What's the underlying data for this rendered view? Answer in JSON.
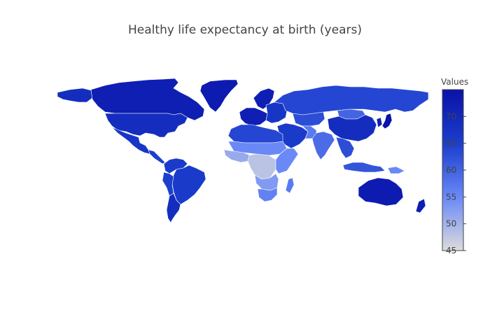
{
  "title": "Healthy life expectancy at birth (years)",
  "colorbar": {
    "title": "Values",
    "min": 45,
    "max": 75,
    "ticks": [
      "70",
      "65",
      "60",
      "55",
      "50",
      "45"
    ],
    "tick_values": [
      70,
      65,
      60,
      55,
      50,
      45
    ],
    "colorscale": [
      "#dcdcdc",
      "#6a89f7",
      "#1c3fce",
      "#0a12a8"
    ]
  },
  "regions": [
    {
      "name": "Canada",
      "value": 72
    },
    {
      "name": "Alaska",
      "value": 69
    },
    {
      "name": "Greenland",
      "value": 73
    },
    {
      "name": "United States",
      "value": 69
    },
    {
      "name": "Mexico",
      "value": 67
    },
    {
      "name": "Central America",
      "value": 65
    },
    {
      "name": "Colombia and Venezuela",
      "value": 66
    },
    {
      "name": "Brazil",
      "value": 66
    },
    {
      "name": "Andean countries",
      "value": 65
    },
    {
      "name": "Southern Cone",
      "value": 69
    },
    {
      "name": "Western Europe",
      "value": 72
    },
    {
      "name": "Scandinavia",
      "value": 72
    },
    {
      "name": "Eastern Europe",
      "value": 67
    },
    {
      "name": "Russia",
      "value": 64
    },
    {
      "name": "Central Asia",
      "value": 63
    },
    {
      "name": "China",
      "value": 69
    },
    {
      "name": "Mongolia",
      "value": 60
    },
    {
      "name": "Japan",
      "value": 75
    },
    {
      "name": "Korea",
      "value": 72
    },
    {
      "name": "Middle East",
      "value": 66
    },
    {
      "name": "North Africa",
      "value": 64
    },
    {
      "name": "Sahel",
      "value": 55
    },
    {
      "name": "West Africa",
      "value": 51
    },
    {
      "name": "Central Africa",
      "value": 48
    },
    {
      "name": "East Africa",
      "value": 55
    },
    {
      "name": "Southern Africa",
      "value": 53
    },
    {
      "name": "South Africa",
      "value": 56
    },
    {
      "name": "Madagascar",
      "value": 57
    },
    {
      "name": "India",
      "value": 59
    },
    {
      "name": "Pakistan and Afghanistan",
      "value": 57
    },
    {
      "name": "Southeast Asia",
      "value": 63
    },
    {
      "name": "Indonesia",
      "value": 62
    },
    {
      "name": "Papua New Guinea",
      "value": 55
    },
    {
      "name": "Australia",
      "value": 73
    },
    {
      "name": "New Zealand",
      "value": 72
    }
  ]
}
